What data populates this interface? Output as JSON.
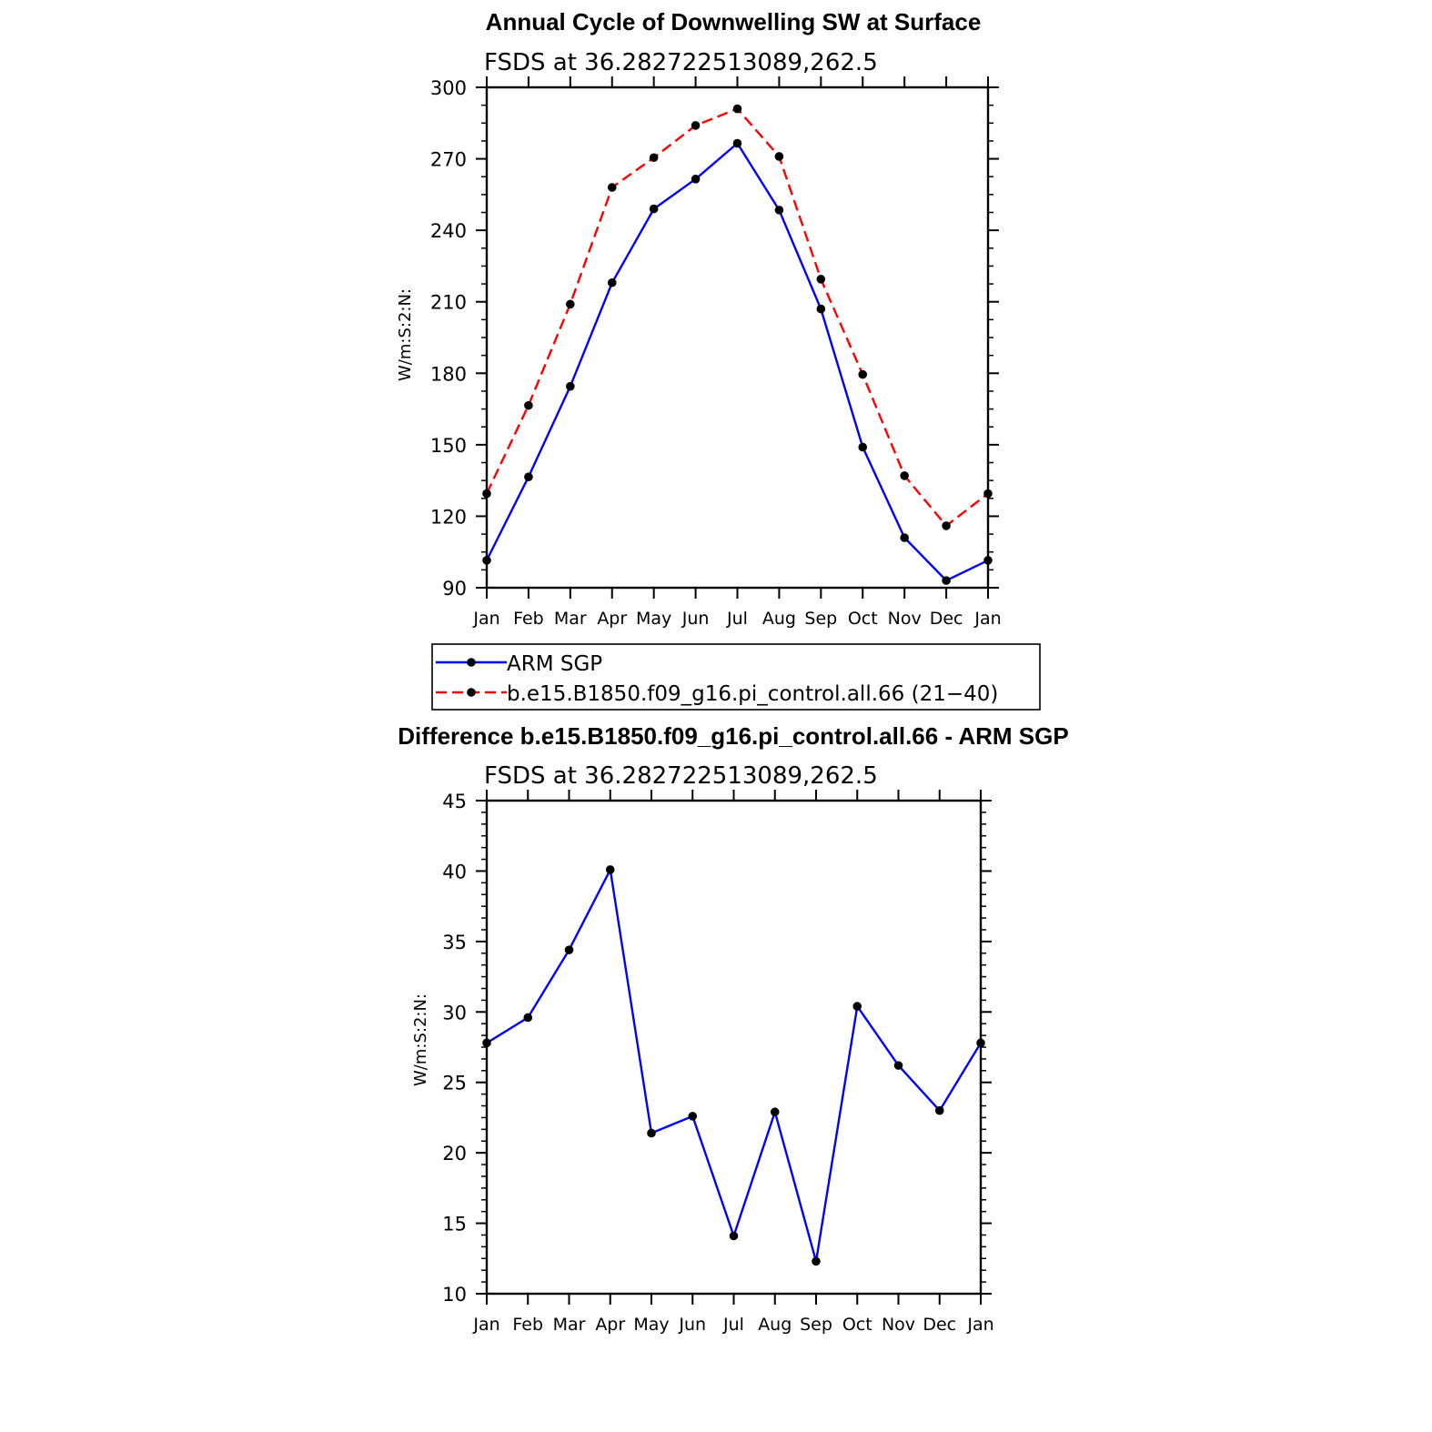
{
  "chart_data": [
    {
      "type": "line",
      "title": "Annual Cycle of Downwelling SW at Surface",
      "subtitle": "FSDS at 36.282722513089,262.5",
      "xlabel": "",
      "ylabel": "W/m:S:2:N:",
      "ylim": [
        90,
        300
      ],
      "yticks": [
        90,
        120,
        150,
        180,
        210,
        240,
        270,
        300
      ],
      "categories": [
        "Jan",
        "Feb",
        "Mar",
        "Apr",
        "May",
        "Jun",
        "Jul",
        "Aug",
        "Sep",
        "Oct",
        "Nov",
        "Dec",
        "Jan"
      ],
      "series": [
        {
          "name": "ARM SGP",
          "color": "#0000ff",
          "dash": "solid",
          "values": [
            101.5,
            136.5,
            174.5,
            218,
            249,
            261.5,
            276.5,
            248.5,
            207,
            149,
            111,
            93,
            101.5
          ]
        },
        {
          "name": "b.e15.B1850.f09_g16.pi_control.all.66 (21−40)",
          "color": "#ff0000",
          "dash": "dashed",
          "values": [
            129.5,
            166.5,
            209,
            258,
            270.5,
            284,
            291,
            271,
            219.5,
            179.5,
            137,
            116,
            129.5
          ]
        }
      ],
      "grid": false,
      "legend_position": "below"
    },
    {
      "type": "line",
      "title": "Difference b.e15.B1850.f09_g16.pi_control.all.66 - ARM SGP",
      "subtitle": "FSDS at 36.282722513089,262.5",
      "xlabel": "",
      "ylabel": "W/m:S:2:N:",
      "ylim": [
        10,
        45
      ],
      "yticks": [
        10,
        15,
        20,
        25,
        30,
        35,
        40,
        45
      ],
      "categories": [
        "Jan",
        "Feb",
        "Mar",
        "Apr",
        "May",
        "Jun",
        "Jul",
        "Aug",
        "Sep",
        "Oct",
        "Nov",
        "Dec",
        "Jan"
      ],
      "series": [
        {
          "color": "#0000ff",
          "dash": "solid",
          "values": [
            27.8,
            29.6,
            34.4,
            40.1,
            21.4,
            22.6,
            14.1,
            22.9,
            12.3,
            30.4,
            26.2,
            23.0,
            27.8
          ]
        }
      ],
      "grid": false
    }
  ]
}
